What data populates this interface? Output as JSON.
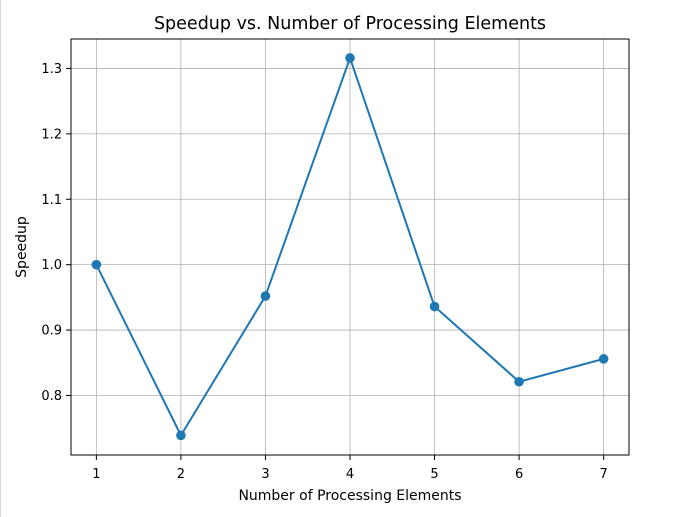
{
  "chart_data": {
    "type": "line",
    "title": "Speedup vs. Number of Processing Elements",
    "xlabel": "Number of Processing Elements",
    "ylabel": "Speedup",
    "x": [
      1,
      2,
      3,
      4,
      5,
      6,
      7
    ],
    "series": [
      {
        "values": [
          1.0,
          0.739,
          0.952,
          1.316,
          0.936,
          0.821,
          0.856
        ],
        "color": "#1f77b4",
        "marker": "circle"
      }
    ],
    "xticks": [
      "1",
      "2",
      "3",
      "4",
      "5",
      "6",
      "7"
    ],
    "yticks": [
      "0.8",
      "0.9",
      "1.0",
      "1.1",
      "1.2",
      "1.3"
    ],
    "ytick_values": [
      0.8,
      0.9,
      1.0,
      1.1,
      1.2,
      1.3
    ],
    "xlim": [
      0.7,
      7.3
    ],
    "ylim": [
      0.709,
      1.345
    ],
    "grid": true,
    "colors": {
      "line": "#1f77b4",
      "grid": "#b0b0b0",
      "axes": "#000000",
      "background": "#ffffff"
    }
  }
}
